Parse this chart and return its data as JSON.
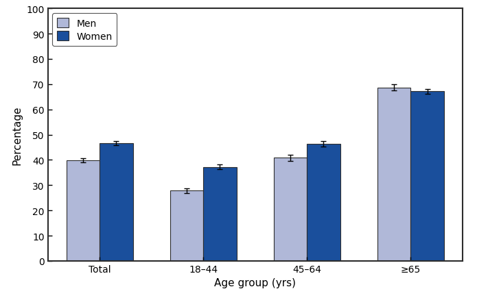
{
  "categories": [
    "Total",
    "18–44",
    "45–64",
    "≥65"
  ],
  "men_values": [
    39.9,
    27.8,
    40.8,
    68.7
  ],
  "women_values": [
    46.7,
    37.2,
    46.4,
    67.1
  ],
  "men_errors": [
    0.8,
    1.0,
    1.1,
    1.2
  ],
  "women_errors": [
    0.8,
    1.0,
    1.0,
    1.0
  ],
  "men_color": "#b0b8d8",
  "women_color": "#1a4f9c",
  "bar_width": 0.32,
  "ylim": [
    0,
    100
  ],
  "yticks": [
    0,
    10,
    20,
    30,
    40,
    50,
    60,
    70,
    80,
    90,
    100
  ],
  "xlabel": "Age group (yrs)",
  "ylabel": "Percentage",
  "legend_men": "Men",
  "legend_women": "Women",
  "edge_color": "#2d2d2d",
  "error_color": "#000000",
  "background_color": "#ffffff",
  "spine_color": "#2d2d2d",
  "tick_fontsize": 10,
  "label_fontsize": 11,
  "legend_fontsize": 10
}
